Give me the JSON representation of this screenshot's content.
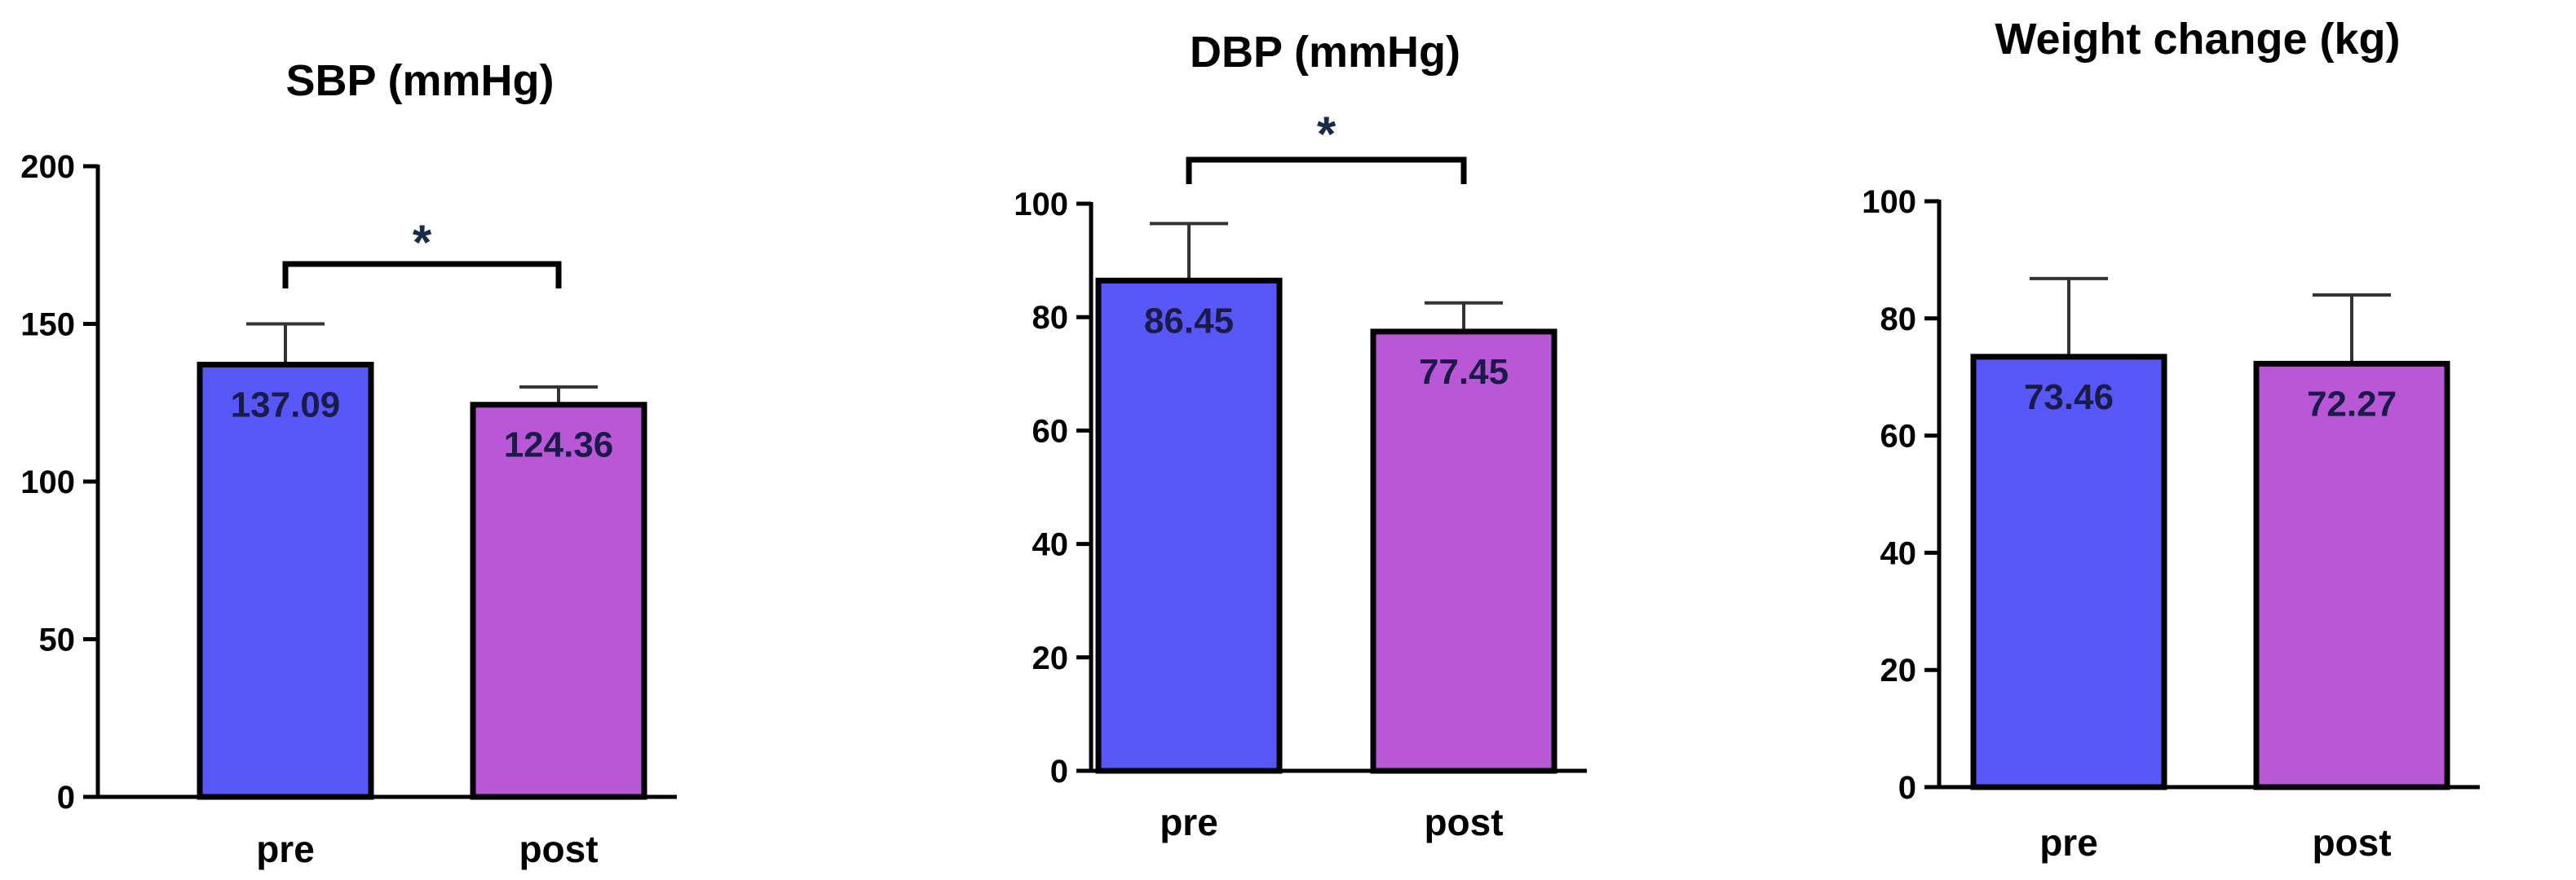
{
  "chart_data": [
    {
      "type": "bar",
      "title": "SBP (mmHg)",
      "categories": [
        "pre",
        "post"
      ],
      "values": [
        137.09,
        124.36
      ],
      "value_labels": [
        "137.09",
        "124.36"
      ],
      "error_upper": [
        150,
        130
      ],
      "ylim": [
        0,
        200
      ],
      "yticks": [
        "0",
        "50",
        "100",
        "150",
        "200"
      ],
      "significance": "*",
      "colors": [
        "#5757F8",
        "#B957D6"
      ]
    },
    {
      "type": "bar",
      "title": "DBP (mmHg)",
      "categories": [
        "pre",
        "post"
      ],
      "values": [
        86.45,
        77.45
      ],
      "value_labels": [
        "86.45",
        "77.45"
      ],
      "error_upper": [
        96.5,
        82.5
      ],
      "ylim": [
        0,
        100
      ],
      "yticks": [
        "0",
        "20",
        "40",
        "60",
        "80",
        "100"
      ],
      "significance": "*",
      "colors": [
        "#5757F8",
        "#B957D6"
      ]
    },
    {
      "type": "bar",
      "title": "Weight change (kg)",
      "categories": [
        "pre",
        "post"
      ],
      "values": [
        73.46,
        72.27
      ],
      "value_labels": [
        "73.46",
        "72.27"
      ],
      "error_upper": [
        86.8,
        84.0
      ],
      "ylim": [
        0,
        100
      ],
      "yticks": [
        "0",
        "20",
        "40",
        "60",
        "80",
        "100"
      ],
      "significance": "",
      "colors": [
        "#5757F8",
        "#B957D6"
      ]
    }
  ]
}
